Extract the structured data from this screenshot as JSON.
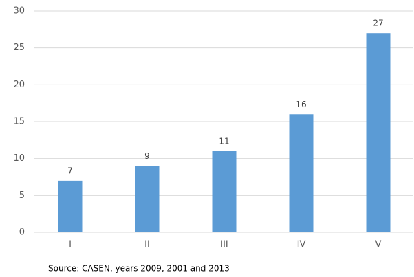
{
  "chart_data": {
    "type": "bar",
    "categories": [
      "I",
      "II",
      "III",
      "IV",
      "V"
    ],
    "values": [
      7,
      9,
      11,
      16,
      27
    ],
    "color": "#5b9bd5",
    "ylim": [
      0,
      30
    ],
    "yticks": [
      0,
      5,
      10,
      15,
      20,
      25,
      30
    ],
    "grid": true,
    "source": "Source: CASEN,  years 2009, 2001 and 2013"
  }
}
